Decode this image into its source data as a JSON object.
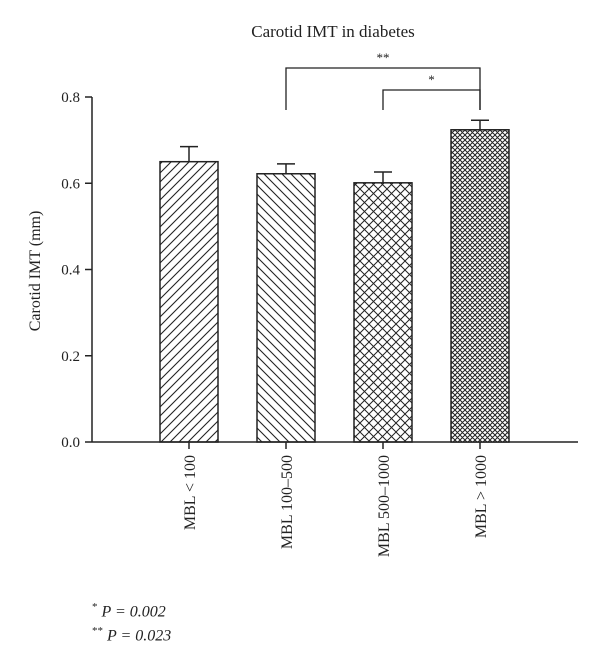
{
  "chart_data": {
    "type": "bar",
    "title": "Carotid IMT in diabetes",
    "xlabel": "",
    "ylabel": "Carotid IMT (mm)",
    "ylim": [
      0,
      0.8
    ],
    "yticks": [
      "0.0",
      "0.2",
      "0.4",
      "0.6",
      "0.8"
    ],
    "categories": [
      "MBL < 100",
      "MBL 100–500",
      "MBL 500–1000",
      "MBL > 1000"
    ],
    "values": [
      0.65,
      0.622,
      0.601,
      0.724
    ],
    "errors": [
      0.035,
      0.023,
      0.025,
      0.022
    ],
    "patterns": [
      "diagonal-up",
      "diagonal-down",
      "crosshatch",
      "dense-crosshatch"
    ],
    "grid": false,
    "legend": "none",
    "significance": [
      {
        "from": 1,
        "to": 3,
        "label": "**"
      },
      {
        "from": 2,
        "to": 3,
        "label": "*"
      }
    ],
    "colors": {
      "bar_fill": "#ffffff",
      "stroke": "#222222"
    }
  },
  "footnotes": [
    {
      "mark": "*",
      "text": "P = 0.002"
    },
    {
      "mark": "**",
      "text": "P = 0.023"
    }
  ]
}
